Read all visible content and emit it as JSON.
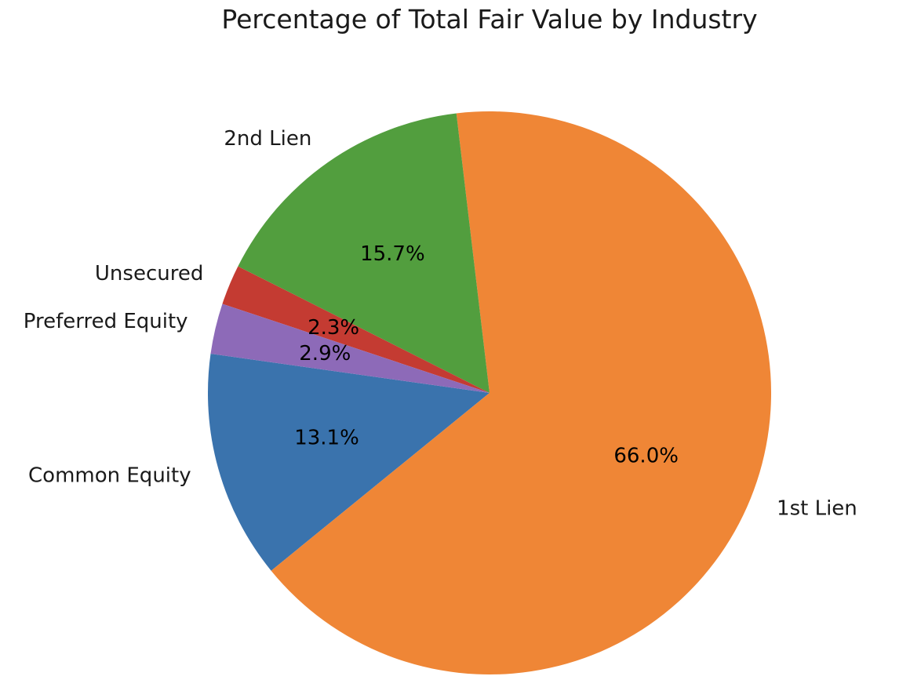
{
  "chart_data": {
    "type": "pie",
    "title": "Percentage of Total Fair Value by Industry",
    "start_angle_deg": 172,
    "direction": "counterclockwise",
    "slices": [
      {
        "label": "Common Equity",
        "value": 13.1,
        "pct_label": "13.1%",
        "color": "#3a73ad"
      },
      {
        "label": "1st Lien",
        "value": 66.0,
        "pct_label": "66.0%",
        "color": "#ef8636"
      },
      {
        "label": "2nd Lien",
        "value": 15.7,
        "pct_label": "15.7%",
        "color": "#529e3e"
      },
      {
        "label": "Unsecured",
        "value": 2.3,
        "pct_label": "2.3%",
        "color": "#c43b32"
      },
      {
        "label": "Preferred Equity",
        "value": 2.9,
        "pct_label": "2.9%",
        "color": "#8d6ab8"
      }
    ]
  }
}
